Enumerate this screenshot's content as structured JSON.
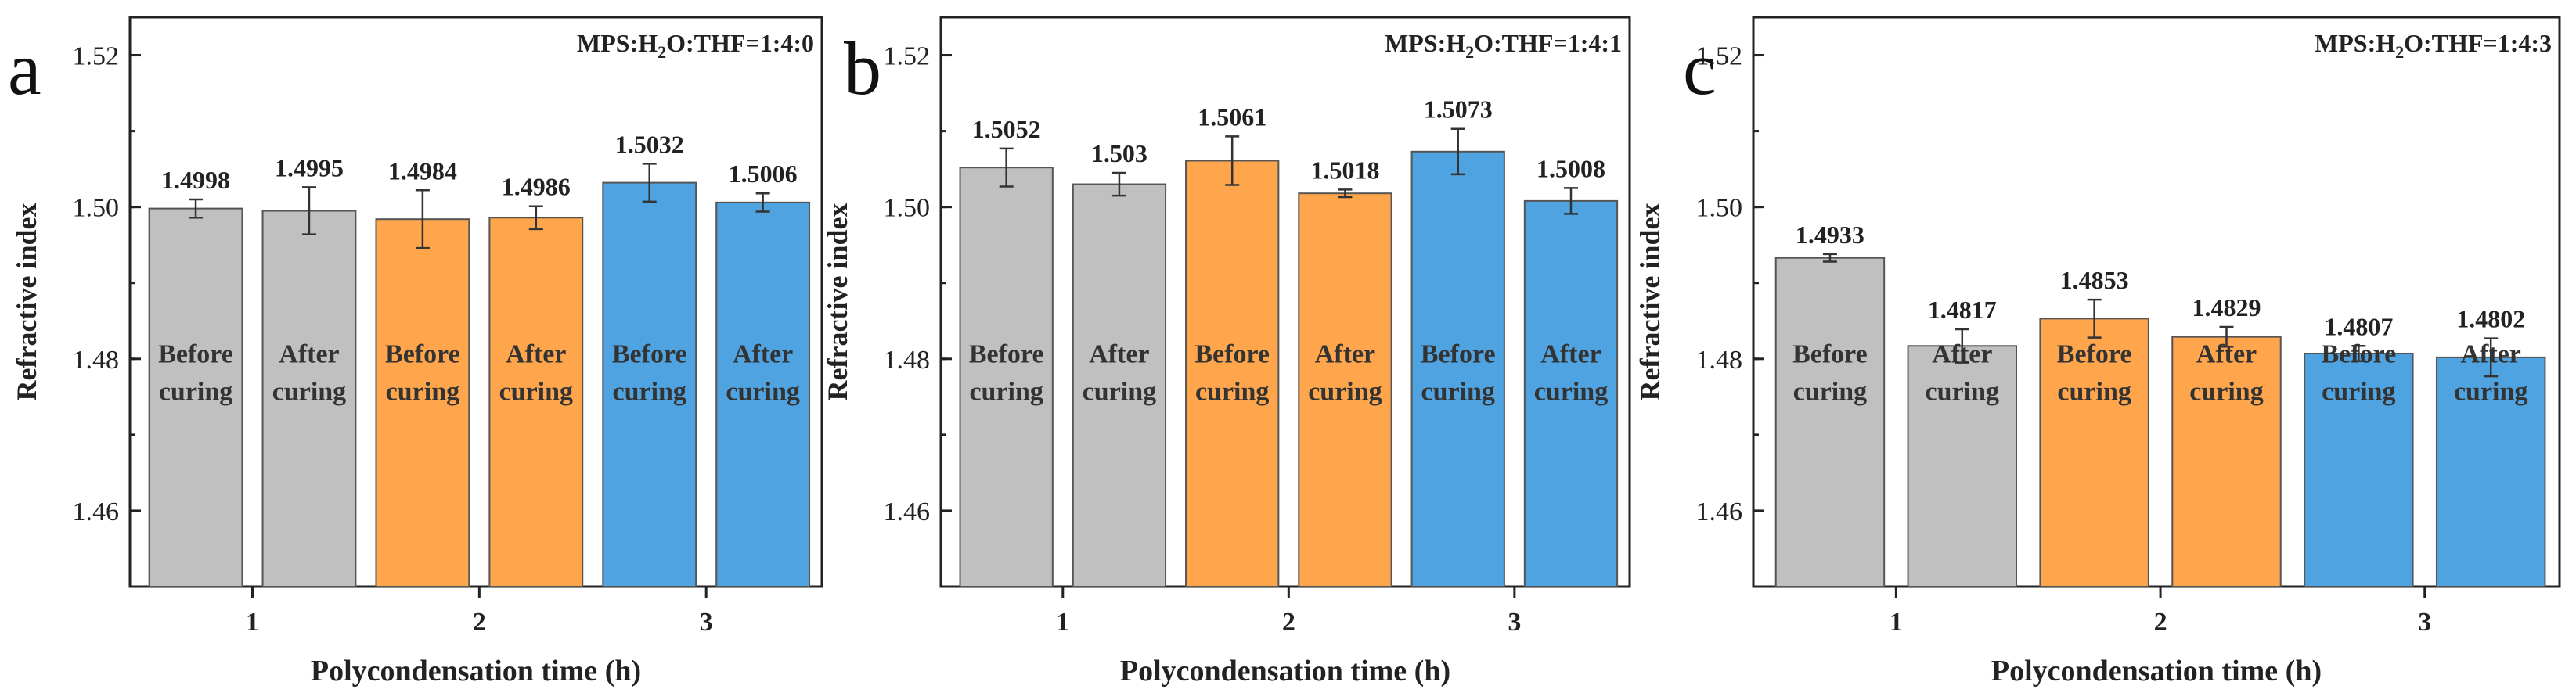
{
  "colors": {
    "gray": "#c0c0c0",
    "orange": "#ffa64d",
    "blue": "#4ea3e0",
    "bar_stroke": "#555555",
    "axis": "#222222",
    "text": "#222222"
  },
  "chart_data": [
    {
      "type": "bar",
      "panel_label": "a",
      "annotation": "MPS:H2O:THF=1:4:0",
      "annotation_parts": {
        "prefix": "MPS:H",
        "sub": "2",
        "suffix": "O:THF=1:4:0"
      },
      "xlabel": "Polycondensation time (h)",
      "ylabel": "Refractive index",
      "ylim": [
        1.45,
        1.525
      ],
      "yticks": [
        1.46,
        1.48,
        1.5,
        1.52
      ],
      "ytick_labels": [
        "1.46",
        "1.48",
        "1.50",
        "1.52"
      ],
      "xticks": [
        "1",
        "2",
        "3"
      ],
      "bars": [
        {
          "group": "1",
          "value": 1.4998,
          "value_label": "1.4998",
          "error": 0.0012,
          "color": "gray",
          "label_line1": "Before",
          "label_line2": "curing"
        },
        {
          "group": "1",
          "value": 1.4995,
          "value_label": "1.4995",
          "error": 0.0031,
          "color": "gray",
          "label_line1": "After",
          "label_line2": "curing"
        },
        {
          "group": "2",
          "value": 1.4984,
          "value_label": "1.4984",
          "error": 0.0038,
          "color": "orange",
          "label_line1": "Before",
          "label_line2": "curing"
        },
        {
          "group": "2",
          "value": 1.4986,
          "value_label": "1.4986",
          "error": 0.0015,
          "color": "orange",
          "label_line1": "After",
          "label_line2": "curing"
        },
        {
          "group": "3",
          "value": 1.5032,
          "value_label": "1.5032",
          "error": 0.0025,
          "color": "blue",
          "label_line1": "Before",
          "label_line2": "curing"
        },
        {
          "group": "3",
          "value": 1.5006,
          "value_label": "1.5006",
          "error": 0.0012,
          "color": "blue",
          "label_line1": "After",
          "label_line2": "curing"
        }
      ]
    },
    {
      "type": "bar",
      "panel_label": "b",
      "annotation": "MPS:H2O:THF=1:4:1",
      "annotation_parts": {
        "prefix": "MPS:H",
        "sub": "2",
        "suffix": "O:THF=1:4:1"
      },
      "xlabel": "Polycondensation time (h)",
      "ylabel": "Refractive index",
      "ylim": [
        1.45,
        1.525
      ],
      "yticks": [
        1.46,
        1.48,
        1.5,
        1.52
      ],
      "ytick_labels": [
        "1.46",
        "1.48",
        "1.50",
        "1.52"
      ],
      "xticks": [
        "1",
        "2",
        "3"
      ],
      "bars": [
        {
          "group": "1",
          "value": 1.5052,
          "value_label": "1.5052",
          "error": 0.0025,
          "color": "gray",
          "label_line1": "Before",
          "label_line2": "curing"
        },
        {
          "group": "1",
          "value": 1.503,
          "value_label": "1.503",
          "error": 0.0015,
          "color": "gray",
          "label_line1": "After",
          "label_line2": "curing"
        },
        {
          "group": "2",
          "value": 1.5061,
          "value_label": "1.5061",
          "error": 0.0032,
          "color": "orange",
          "label_line1": "Before",
          "label_line2": "curing"
        },
        {
          "group": "2",
          "value": 1.5018,
          "value_label": "1.5018",
          "error": 0.0005,
          "color": "orange",
          "label_line1": "After",
          "label_line2": "curing"
        },
        {
          "group": "3",
          "value": 1.5073,
          "value_label": "1.5073",
          "error": 0.003,
          "color": "blue",
          "label_line1": "Before",
          "label_line2": "curing"
        },
        {
          "group": "3",
          "value": 1.5008,
          "value_label": "1.5008",
          "error": 0.0017,
          "color": "blue",
          "label_line1": "After",
          "label_line2": "curing"
        }
      ]
    },
    {
      "type": "bar",
      "panel_label": "c",
      "annotation": "MPS:H2O:THF=1:4:3",
      "annotation_parts": {
        "prefix": "MPS:H",
        "sub": "2",
        "suffix": "O:THF=1:4:3"
      },
      "xlabel": "Polycondensation time (h)",
      "ylabel": "Refractive index",
      "ylim": [
        1.45,
        1.525
      ],
      "yticks": [
        1.46,
        1.48,
        1.5,
        1.52
      ],
      "ytick_labels": [
        "1.46",
        "1.48",
        "1.50",
        "1.52"
      ],
      "xticks": [
        "1",
        "2",
        "3"
      ],
      "bars": [
        {
          "group": "1",
          "value": 1.4933,
          "value_label": "1.4933",
          "error": 0.0005,
          "color": "gray",
          "label_line1": "Before",
          "label_line2": "curing"
        },
        {
          "group": "1",
          "value": 1.4817,
          "value_label": "1.4817",
          "error": 0.0022,
          "color": "gray",
          "label_line1": "After",
          "label_line2": "curing"
        },
        {
          "group": "2",
          "value": 1.4853,
          "value_label": "1.4853",
          "error": 0.0025,
          "color": "orange",
          "label_line1": "Before",
          "label_line2": "curing"
        },
        {
          "group": "2",
          "value": 1.4829,
          "value_label": "1.4829",
          "error": 0.0013,
          "color": "orange",
          "label_line1": "After",
          "label_line2": "curing"
        },
        {
          "group": "3",
          "value": 1.4807,
          "value_label": "1.4807",
          "error": 0.001,
          "color": "blue",
          "label_line1": "Before",
          "label_line2": "curing"
        },
        {
          "group": "3",
          "value": 1.4802,
          "value_label": "1.4802",
          "error": 0.0025,
          "color": "blue",
          "label_line1": "After",
          "label_line2": "curing"
        }
      ]
    }
  ]
}
